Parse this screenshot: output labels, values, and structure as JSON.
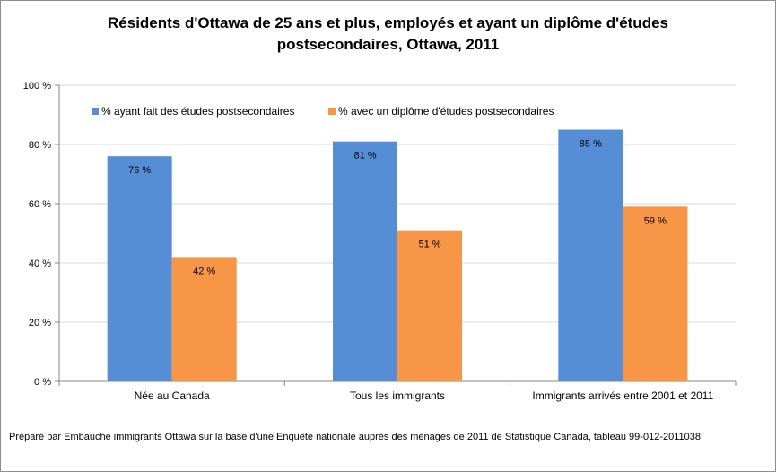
{
  "chart_data": {
    "type": "bar",
    "title": "Résidents d'Ottawa de 25 ans et plus, employés et ayant un diplôme d'études postsecondaires, Ottawa, 2011",
    "categories": [
      "Née au Canada",
      "Tous les immigrants",
      "Immigrants  arrivés entre 2001 et 2011"
    ],
    "series": [
      {
        "name": "% ayant fait des études postsecondaires",
        "values": [
          76,
          81,
          85
        ],
        "labels": [
          "76 %",
          "81 %",
          "85 %"
        ],
        "color": "#558ed5"
      },
      {
        "name": "% avec un diplôme d'études postsecondaires",
        "values": [
          42,
          51,
          59
        ],
        "labels": [
          "42 %",
          "51 %",
          "59 %"
        ],
        "color": "#f79646"
      }
    ],
    "ylim": [
      0,
      100
    ],
    "yticks": [
      0,
      20,
      40,
      60,
      80,
      100
    ],
    "ytick_labels": [
      "0 %",
      "20 %",
      "40 %",
      "60 %",
      "80 %",
      "100 %"
    ],
    "xlabel": "",
    "ylabel": "",
    "grid": true,
    "legend_position": "top",
    "source": "Préparé par Embauche immigrants Ottawa sur la base d'une  Enquête nationale auprès des ménages de 2011 de Statistique Canada, tableau 99-012-2011038"
  }
}
